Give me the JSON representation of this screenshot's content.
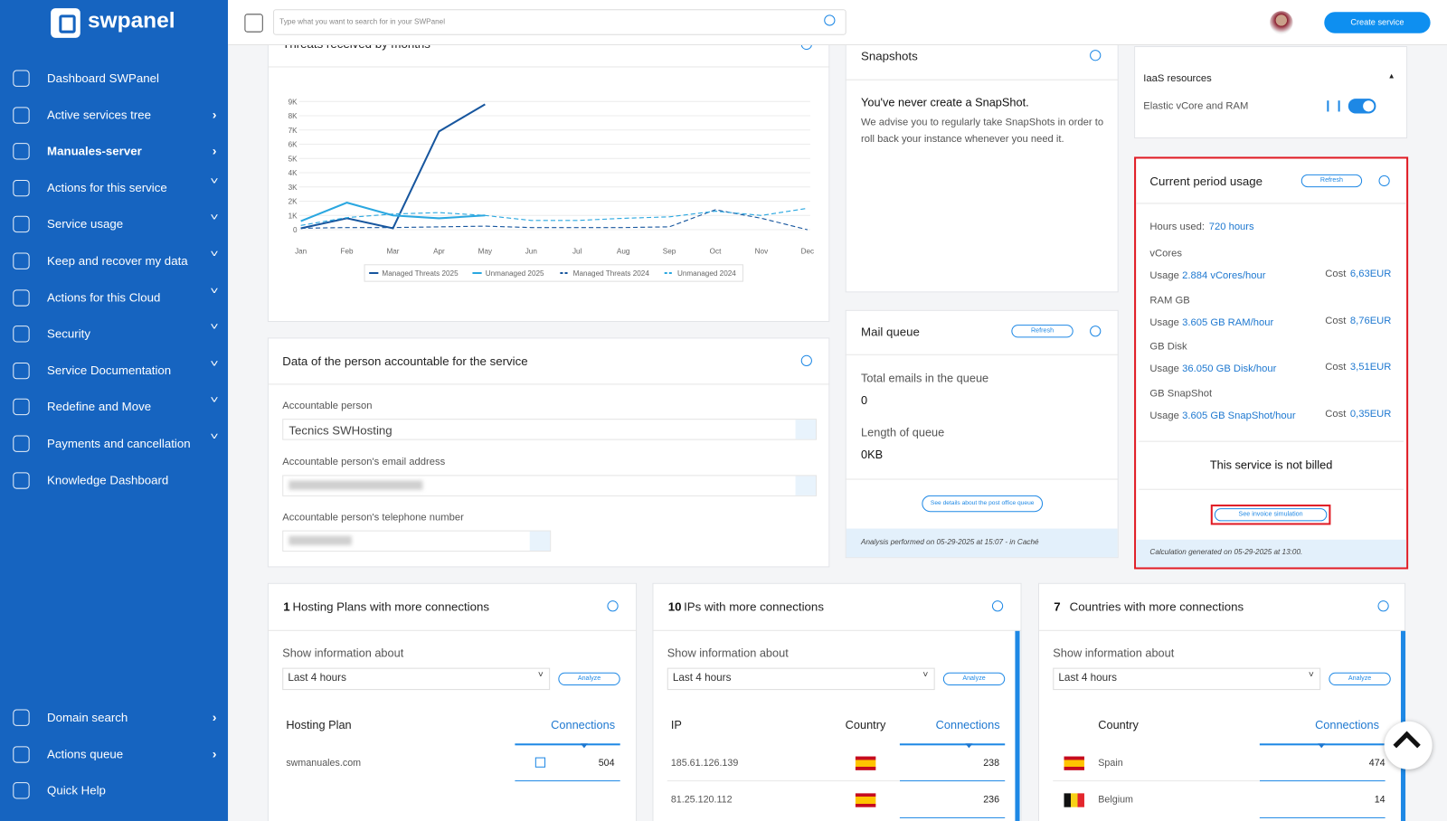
{
  "sidebar": {
    "logo": "swpanel",
    "items": [
      "Dashboard SWPanel",
      "Active services tree",
      "Manuales-server",
      "Actions for this service",
      "Service usage",
      "Keep and recover my data",
      "Actions for this Cloud",
      "Security",
      "Service Documentation",
      "Redefine and Move",
      "Payments and cancellation",
      "Knowledge Dashboard"
    ],
    "bottom_items": [
      "Domain search",
      "Actions queue",
      "Quick Help"
    ]
  },
  "header": {
    "search_placeholder": "Type what you want to search for in your SWPanel",
    "create_button": "Create service"
  },
  "chart_data": {
    "type": "line",
    "title": "Threats received by months",
    "categories": [
      "Jan",
      "Feb",
      "Mar",
      "Apr",
      "May",
      "Jun",
      "Jul",
      "Aug",
      "Sep",
      "Oct",
      "Nov",
      "Dec"
    ],
    "series": [
      {
        "name": "Managed Threats 2025",
        "color": "#17569e",
        "dashed": false,
        "values": [
          100,
          800,
          100,
          6900,
          8800,
          null,
          null,
          null,
          null,
          null,
          null,
          null
        ]
      },
      {
        "name": "Unmanaged 2025",
        "color": "#2aa7e0",
        "dashed": false,
        "values": [
          600,
          1900,
          1000,
          800,
          1000,
          null,
          null,
          null,
          null,
          null,
          null,
          null
        ]
      },
      {
        "name": "Managed Threats 2024",
        "color": "#17569e",
        "dashed": true,
        "values": [
          100,
          150,
          150,
          200,
          250,
          150,
          150,
          150,
          200,
          1400,
          800,
          0
        ]
      },
      {
        "name": "Unmanaged 2024",
        "color": "#2aa7e0",
        "dashed": true,
        "values": [
          300,
          850,
          1100,
          1200,
          1000,
          650,
          650,
          800,
          900,
          1300,
          1000,
          1500
        ]
      }
    ],
    "ylim": [
      0,
      9000
    ],
    "yticks": [
      0,
      {
        "value": 1000,
        "label": "1K"
      },
      {
        "value": 2000,
        "label": "2K"
      },
      {
        "value": 3000,
        "label": "3K"
      },
      {
        "value": 4000,
        "label": "4K"
      },
      {
        "value": 5000,
        "label": "5K"
      },
      {
        "value": 6000,
        "label": "6K"
      },
      {
        "value": 7000,
        "label": "7K"
      },
      {
        "value": 8000,
        "label": "8K"
      },
      {
        "value": 9000,
        "label": "9K"
      }
    ],
    "grid": true,
    "legend": "bottom"
  },
  "snapshots": {
    "title": "Snapshots",
    "heading": "You've never create a SnapShot.",
    "text": "We advise you to regularly take SnapShots in order to roll back your instance whenever you need it."
  },
  "iaas": {
    "title": "IaaS resources",
    "item": "Elastic vCore and RAM"
  },
  "usage": {
    "title": "Current period usage",
    "refresh": "Refresh",
    "hours_label": "Hours used:",
    "hours_value": "720 hours",
    "usage_label": "Usage",
    "cost_label": "Cost",
    "rows": [
      {
        "name": "vCores",
        "usage": "2.884 vCores/hour",
        "cost": "6,63EUR"
      },
      {
        "name": "RAM GB",
        "usage": "3.605 GB RAM/hour",
        "cost": "8,76EUR"
      },
      {
        "name": "GB Disk",
        "usage": "36.050 GB Disk/hour",
        "cost": "3,51EUR"
      },
      {
        "name": "GB SnapShot",
        "usage": "3.605 GB SnapShot/hour",
        "cost": "0,35EUR"
      }
    ],
    "not_billed": "This service is not billed",
    "simulation": "See invoice simulation",
    "footer": "Calculation generated on 05-29-2025 at 13:00."
  },
  "accountable": {
    "title": "Data of the person accountable for the service",
    "person_label": "Accountable person",
    "person_value": "Tecnics SWHosting",
    "email_label": "Accountable person's email address",
    "phone_label": "Accountable person's telephone number"
  },
  "mail_queue": {
    "title": "Mail queue",
    "refresh": "Refresh",
    "total_label": "Total emails in the queue",
    "total_value": 0,
    "length_label": "Length of queue",
    "length_value": "0KB",
    "details": "See details about the post office queue",
    "footer": "Analysis performed on 05-29-2025 at 15:07 - in Caché"
  },
  "cards": [
    {
      "count": 1,
      "title": "Hosting Plans with more connections",
      "show": "Show information about",
      "select": "Last 4 hours",
      "analyze": "Analyze",
      "columns": [
        "Hosting Plan",
        "Connections"
      ],
      "rows": [
        [
          "swmanuales.com",
          504
        ]
      ]
    },
    {
      "count": 10,
      "title": "IPs with more connections",
      "show": "Show information about",
      "select": "Last 4 hours",
      "analyze": "Analyze",
      "columns": [
        "IP",
        "Country",
        "Connections"
      ],
      "rows": [
        [
          "185.61.126.139",
          238
        ],
        [
          "81.25.120.112",
          236
        ]
      ]
    },
    {
      "count": 7,
      "title": "Countries with more connections",
      "show": "Show information about",
      "select": "Last 4 hours",
      "analyze": "Analyze",
      "columns": [
        "Country",
        "Connections"
      ],
      "rows": [
        [
          "Spain",
          474
        ],
        [
          "Belgium",
          14
        ]
      ]
    }
  ]
}
